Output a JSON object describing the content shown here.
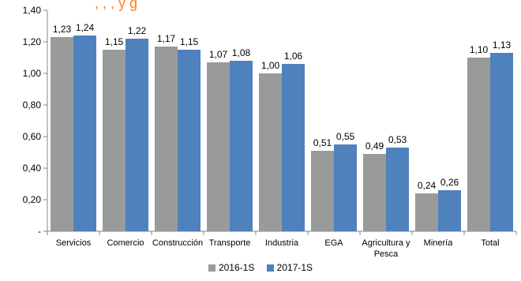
{
  "header": {
    "title_fragment": "               , ,                     ,        y          g"
  },
  "chart_data": {
    "type": "bar",
    "categories": [
      "Servicios",
      "Comercio",
      "Construcción",
      "Transporte",
      "Industria",
      "EGA",
      "Agricultura y Pesca",
      "Minería",
      "Total"
    ],
    "category_lines": [
      [
        "Servicios"
      ],
      [
        "Comercio"
      ],
      [
        "Construcción"
      ],
      [
        "Transporte"
      ],
      [
        "Industria"
      ],
      [
        "EGA"
      ],
      [
        "Agricultura y",
        "Pesca"
      ],
      [
        "Minería"
      ],
      [
        "Total"
      ]
    ],
    "series": [
      {
        "name": "2016-1S",
        "color": "#999b9b",
        "values": [
          1.23,
          1.15,
          1.17,
          1.07,
          1.0,
          0.51,
          0.49,
          0.24,
          1.1
        ],
        "labels": [
          "1,23",
          "1,15",
          "1,17",
          "1,07",
          "1,00",
          "0,51",
          "0,49",
          "0,24",
          "1,10"
        ]
      },
      {
        "name": "2017-1S",
        "color": "#4f81bd",
        "values": [
          1.24,
          1.22,
          1.15,
          1.08,
          1.06,
          0.55,
          0.53,
          0.26,
          1.13
        ],
        "labels": [
          "1,24",
          "1,22",
          "1,15",
          "1,08",
          "1,06",
          "0,55",
          "0,53",
          "0,26",
          "1,13"
        ]
      }
    ],
    "ylim": [
      0,
      1.4
    ],
    "yticks": [
      0,
      0.2,
      0.4,
      0.6,
      0.8,
      1.0,
      1.2,
      1.4
    ],
    "ytick_labels": [
      "-",
      "0,20",
      "0,40",
      "0,60",
      "0,80",
      "1,00",
      "1,20",
      "1,40"
    ],
    "grid": false,
    "legend_position": "bottom"
  }
}
